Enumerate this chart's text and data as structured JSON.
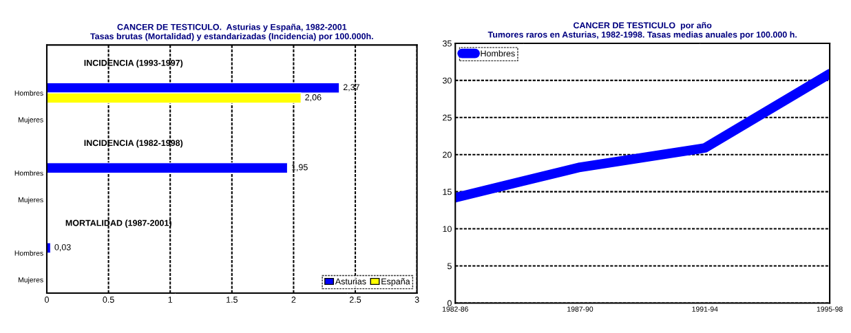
{
  "chart_data": [
    {
      "type": "bar",
      "orientation": "horizontal",
      "title": "CANCER DE TESTICULO.  Asturias y España, 1982-2001",
      "subtitle": "Tasas brutas (Mortalidad) y estandarizadas (Incidencia) por 100.000h.",
      "categories": [
        "Hombres",
        "Mujeres",
        "Hombres",
        "Mujeres",
        "Hombres",
        "Mujeres"
      ],
      "series": [
        {
          "name": "Asturias",
          "color": "#0000ff",
          "values": [
            2.37,
            null,
            1.95,
            null,
            0.03,
            null
          ],
          "value_labels": [
            "2,37",
            null,
            "1,95",
            null,
            "0,03",
            null
          ]
        },
        {
          "name": "España",
          "color": "#ffff00",
          "values": [
            2.06,
            null,
            null,
            null,
            null,
            null
          ],
          "value_labels": [
            "2,06",
            null,
            null,
            null,
            null,
            null
          ]
        }
      ],
      "annotations": [
        "INCIDENCIA (1993-1997)",
        "INCIDENCIA (1982-1998)",
        "MORTALIDAD (1987-2001)"
      ],
      "xlim": [
        0,
        3
      ],
      "xticks": [
        0,
        0.5,
        1,
        1.5,
        2,
        2.5,
        3
      ],
      "grid": "x",
      "legend": "bottom right"
    },
    {
      "type": "line",
      "title": "CANCER DE TESTICULO  por año",
      "subtitle": "Tumores raros en Asturias, 1982-1998. Tasas medias anuales por 100.000 h.",
      "categories": [
        "1982-86",
        "1987-90",
        "1991-94",
        "1995-98"
      ],
      "series": [
        {
          "name": "Hombres",
          "color": "#0000ff",
          "values": [
            14.2,
            18.3,
            20.9,
            30.9
          ]
        }
      ],
      "ylim": [
        0,
        35
      ],
      "yticks": [
        0,
        5,
        10,
        15,
        20,
        25,
        30,
        35
      ],
      "grid": "y",
      "legend": "top left",
      "line_style": "solid"
    }
  ]
}
